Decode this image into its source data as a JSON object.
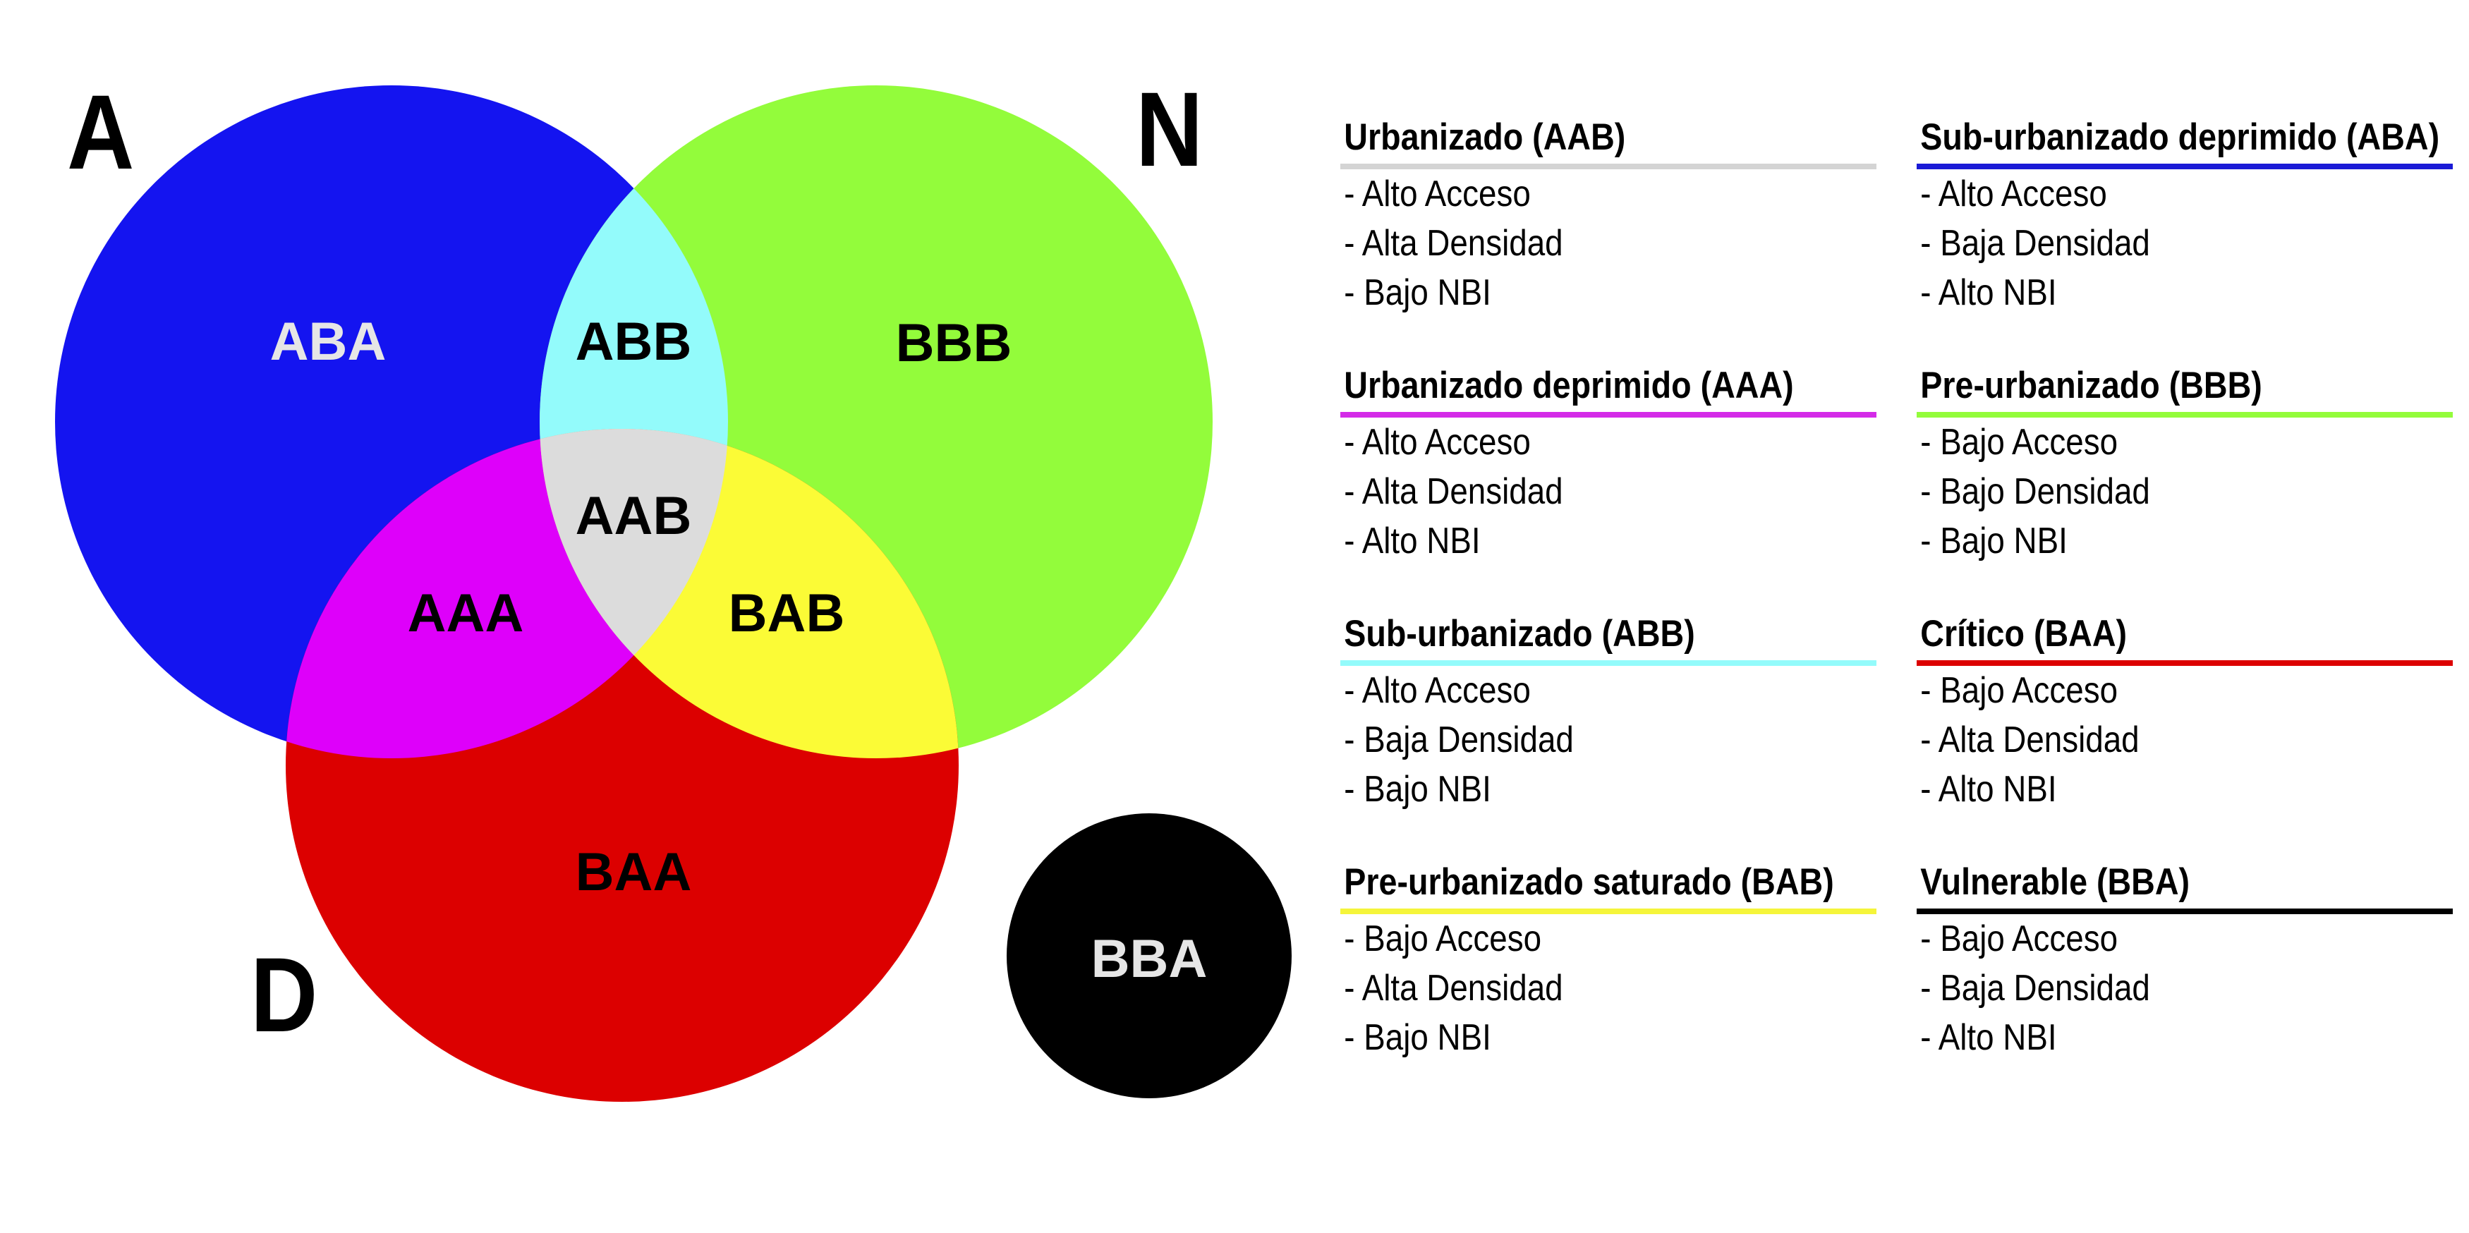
{
  "corner_labels": {
    "a": "A",
    "n": "N",
    "d": "D"
  },
  "regions": {
    "aba": "ABA",
    "abb": "ABB",
    "bbb": "BBB",
    "aab": "AAB",
    "aaa": "AAA",
    "bab": "BAB",
    "baa": "BAA",
    "bba": "BBA"
  },
  "colors": {
    "blue": "#1414f0",
    "green": "#93fc3b",
    "red": "#dc0000",
    "cyan": "#93fbfb",
    "magenta": "#de00fa",
    "yellow": "#fbfb36",
    "grey": "#dcdcdc",
    "black": "#000000"
  },
  "legend": [
    {
      "title": "Urbanizado (AAB)",
      "color": "#d4d4d4",
      "lines": [
        "- Alto Acceso",
        "- Alta Densidad",
        "- Bajo NBI"
      ]
    },
    {
      "title": "Urbanizado deprimido (AAA)",
      "color": "#d42be8",
      "lines": [
        "- Alto Acceso",
        "- Alta Densidad",
        "- Alto NBI"
      ]
    },
    {
      "title": "Sub-urbanizado (ABB)",
      "color": "#93fbfb",
      "lines": [
        "- Alto Acceso",
        "- Baja Densidad",
        "- Bajo NBI"
      ]
    },
    {
      "title": "Pre-urbanizado saturado (BAB)",
      "color": "#f5f53a",
      "lines": [
        "- Bajo Acceso",
        "- Alta Densidad",
        "- Bajo NBI"
      ]
    },
    {
      "title": "Sub-urbanizado deprimido (ABA)",
      "color": "#1a1ad6",
      "lines": [
        "- Alto Acceso",
        "- Baja Densidad",
        "- Alto NBI"
      ]
    },
    {
      "title": "Pre-urbanizado (BBB)",
      "color": "#93fc3b",
      "lines": [
        "- Bajo Acceso",
        "- Bajo Densidad",
        "- Bajo NBI"
      ]
    },
    {
      "title": "Crítico (BAA)",
      "color": "#dc0000",
      "lines": [
        "- Bajo Acceso",
        "- Alta Densidad",
        "- Alto NBI"
      ]
    },
    {
      "title": "Vulnerable (BBA)",
      "color": "#000000",
      "lines": [
        "- Bajo Acceso",
        "- Baja Densidad",
        "- Alto NBI"
      ]
    }
  ]
}
